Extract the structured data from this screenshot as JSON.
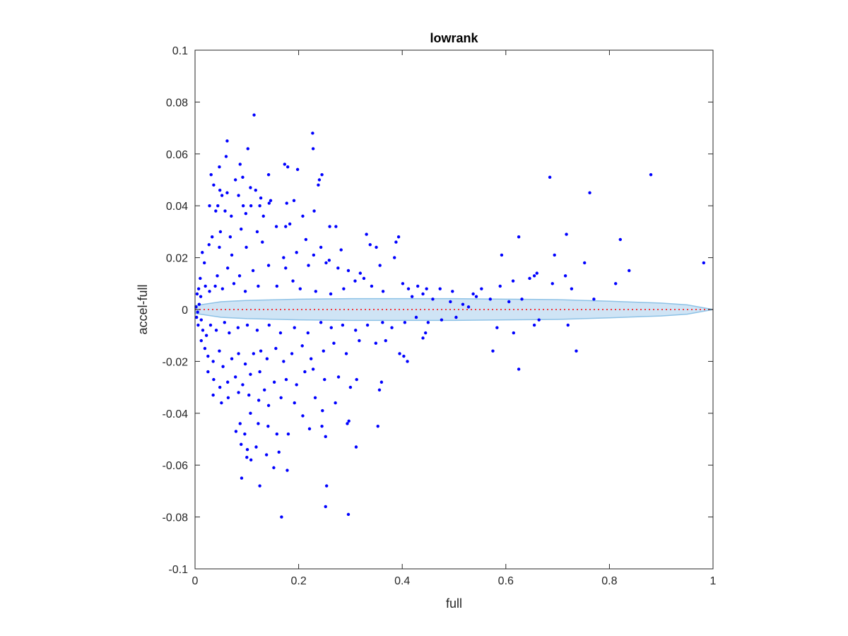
{
  "chart_data": {
    "type": "scatter",
    "title": "lowrank",
    "xlabel": "full",
    "ylabel": "accel-full",
    "xlim": [
      0,
      1
    ],
    "ylim": [
      -0.1,
      0.1
    ],
    "x_ticks": [
      0,
      0.2,
      0.4,
      0.6,
      0.8,
      1
    ],
    "x_tick_labels": [
      "0",
      "0.2",
      "0.4",
      "0.6",
      "0.8",
      "1"
    ],
    "y_ticks": [
      -0.1,
      -0.08,
      -0.06,
      -0.04,
      -0.02,
      0,
      0.02,
      0.04,
      0.06,
      0.08,
      0.1
    ],
    "y_tick_labels": [
      "-0.1",
      "-0.08",
      "-0.06",
      "-0.04",
      "-0.02",
      "0",
      "0.02",
      "0.04",
      "0.06",
      "0.08",
      "0.1"
    ],
    "grid": false,
    "colors": {
      "points": "#0000ff",
      "zero_line": "#ff0000",
      "band_fill": "#cfe4f5",
      "band_edge": "#8ec2e6"
    },
    "zero_line": {
      "y": 0,
      "style": "dotted"
    },
    "band": {
      "x": [
        0,
        0.05,
        0.1,
        0.2,
        0.3,
        0.4,
        0.5,
        0.6,
        0.7,
        0.8,
        0.9,
        0.95,
        1.0
      ],
      "upper": [
        0.0015,
        0.003,
        0.0035,
        0.004,
        0.0042,
        0.0042,
        0.0042,
        0.004,
        0.0038,
        0.0032,
        0.0025,
        0.0018,
        0.0
      ],
      "lower": [
        -0.0015,
        -0.003,
        -0.0035,
        -0.004,
        -0.0042,
        -0.0042,
        -0.0042,
        -0.004,
        -0.0038,
        -0.0032,
        -0.0025,
        -0.0018,
        0.0
      ]
    },
    "series": [
      {
        "points": [
          [
            0.114,
            0.075
          ],
          [
            0.227,
            0.068
          ],
          [
            0.228,
            0.062
          ],
          [
            0.102,
            0.062
          ],
          [
            0.062,
            0.065
          ],
          [
            0.06,
            0.059
          ],
          [
            0.087,
            0.056
          ],
          [
            0.173,
            0.056
          ],
          [
            0.179,
            0.055
          ],
          [
            0.198,
            0.054
          ],
          [
            0.047,
            0.055
          ],
          [
            0.245,
            0.052
          ],
          [
            0.24,
            0.05
          ],
          [
            0.238,
            0.048
          ],
          [
            0.142,
            0.052
          ],
          [
            0.092,
            0.051
          ],
          [
            0.031,
            0.052
          ],
          [
            0.036,
            0.048
          ],
          [
            0.078,
            0.05
          ],
          [
            0.062,
            0.045
          ],
          [
            0.107,
            0.047
          ],
          [
            0.117,
            0.046
          ],
          [
            0.048,
            0.046
          ],
          [
            0.052,
            0.044
          ],
          [
            0.044,
            0.04
          ],
          [
            0.084,
            0.044
          ],
          [
            0.127,
            0.043
          ],
          [
            0.146,
            0.042
          ],
          [
            0.143,
            0.041
          ],
          [
            0.125,
            0.04
          ],
          [
            0.177,
            0.041
          ],
          [
            0.191,
            0.042
          ],
          [
            0.093,
            0.04
          ],
          [
            0.108,
            0.04
          ],
          [
            0.028,
            0.04
          ],
          [
            0.04,
            0.038
          ],
          [
            0.058,
            0.038
          ],
          [
            0.07,
            0.036
          ],
          [
            0.098,
            0.037
          ],
          [
            0.132,
            0.036
          ],
          [
            0.208,
            0.036
          ],
          [
            0.23,
            0.038
          ],
          [
            0.26,
            0.032
          ],
          [
            0.272,
            0.032
          ],
          [
            0.183,
            0.033
          ],
          [
            0.175,
            0.032
          ],
          [
            0.157,
            0.032
          ],
          [
            0.12,
            0.03
          ],
          [
            0.089,
            0.031
          ],
          [
            0.068,
            0.028
          ],
          [
            0.049,
            0.03
          ],
          [
            0.033,
            0.028
          ],
          [
            0.027,
            0.025
          ],
          [
            0.047,
            0.024
          ],
          [
            0.071,
            0.021
          ],
          [
            0.099,
            0.024
          ],
          [
            0.13,
            0.026
          ],
          [
            0.171,
            0.02
          ],
          [
            0.196,
            0.022
          ],
          [
            0.214,
            0.027
          ],
          [
            0.229,
            0.021
          ],
          [
            0.243,
            0.024
          ],
          [
            0.259,
            0.019
          ],
          [
            0.282,
            0.023
          ],
          [
            0.331,
            0.029
          ],
          [
            0.338,
            0.025
          ],
          [
            0.35,
            0.024
          ],
          [
            0.388,
            0.026
          ],
          [
            0.393,
            0.028
          ],
          [
            0.385,
            0.02
          ],
          [
            0.357,
            0.017
          ],
          [
            0.326,
            0.012
          ],
          [
            0.319,
            0.014
          ],
          [
            0.296,
            0.015
          ],
          [
            0.276,
            0.016
          ],
          [
            0.253,
            0.018
          ],
          [
            0.219,
            0.017
          ],
          [
            0.175,
            0.016
          ],
          [
            0.142,
            0.017
          ],
          [
            0.112,
            0.015
          ],
          [
            0.086,
            0.013
          ],
          [
            0.063,
            0.016
          ],
          [
            0.043,
            0.013
          ],
          [
            0.018,
            0.018
          ],
          [
            0.014,
            0.022
          ],
          [
            0.01,
            0.012
          ],
          [
            0.007,
            0.008
          ],
          [
            0.004,
            0.006
          ],
          [
            0.011,
            0.005
          ],
          [
            0.02,
            0.009
          ],
          [
            0.028,
            0.007
          ],
          [
            0.039,
            0.009
          ],
          [
            0.053,
            0.008
          ],
          [
            0.075,
            0.01
          ],
          [
            0.097,
            0.007
          ],
          [
            0.122,
            0.009
          ],
          [
            0.158,
            0.009
          ],
          [
            0.189,
            0.011
          ],
          [
            0.203,
            0.008
          ],
          [
            0.233,
            0.007
          ],
          [
            0.262,
            0.006
          ],
          [
            0.287,
            0.008
          ],
          [
            0.309,
            0.011
          ],
          [
            0.341,
            0.009
          ],
          [
            0.363,
            0.007
          ],
          [
            0.401,
            0.01
          ],
          [
            0.412,
            0.008
          ],
          [
            0.44,
            0.006
          ],
          [
            0.459,
            0.004
          ],
          [
            0.493,
            0.003
          ],
          [
            0.517,
            0.002
          ],
          [
            0.528,
            0.001
          ],
          [
            0.543,
            0.005
          ],
          [
            0.553,
            0.008
          ],
          [
            0.589,
            0.009
          ],
          [
            0.614,
            0.011
          ],
          [
            0.646,
            0.012
          ],
          [
            0.592,
            0.021
          ],
          [
            0.625,
            0.028
          ],
          [
            0.66,
            0.014
          ],
          [
            0.685,
            0.051
          ],
          [
            0.717,
            0.029
          ],
          [
            0.762,
            0.045
          ],
          [
            0.752,
            0.018
          ],
          [
            0.821,
            0.027
          ],
          [
            0.838,
            0.015
          ],
          [
            0.812,
            0.01
          ],
          [
            0.88,
            0.052
          ],
          [
            0.982,
            0.018
          ],
          [
            0.694,
            0.021
          ],
          [
            0.715,
            0.013
          ],
          [
            0.727,
            0.008
          ],
          [
            0.77,
            0.004
          ],
          [
            0.69,
            0.01
          ],
          [
            0.655,
            0.013
          ],
          [
            0.631,
            0.004
          ],
          [
            0.606,
            0.003
          ],
          [
            0.57,
            0.004
          ],
          [
            0.537,
            0.006
          ],
          [
            0.497,
            0.007
          ],
          [
            0.473,
            0.008
          ],
          [
            0.447,
            0.008
          ],
          [
            0.43,
            0.009
          ],
          [
            0.419,
            0.005
          ],
          [
            0.002,
            0.001
          ],
          [
            0.005,
            -0.001
          ],
          [
            0.008,
            0.002
          ],
          [
            0.003,
            -0.003
          ],
          [
            0.006,
            -0.006
          ],
          [
            0.012,
            -0.004
          ],
          [
            0.015,
            -0.008
          ],
          [
            0.022,
            -0.01
          ],
          [
            0.03,
            -0.006
          ],
          [
            0.041,
            -0.008
          ],
          [
            0.057,
            -0.005
          ],
          [
            0.066,
            -0.009
          ],
          [
            0.083,
            -0.007
          ],
          [
            0.101,
            -0.006
          ],
          [
            0.12,
            -0.008
          ],
          [
            0.143,
            -0.006
          ],
          [
            0.165,
            -0.009
          ],
          [
            0.192,
            -0.007
          ],
          [
            0.218,
            -0.009
          ],
          [
            0.243,
            -0.005
          ],
          [
            0.263,
            -0.007
          ],
          [
            0.285,
            -0.006
          ],
          [
            0.31,
            -0.008
          ],
          [
            0.333,
            -0.006
          ],
          [
            0.362,
            -0.005
          ],
          [
            0.38,
            -0.007
          ],
          [
            0.405,
            -0.005
          ],
          [
            0.427,
            -0.003
          ],
          [
            0.45,
            -0.005
          ],
          [
            0.476,
            -0.004
          ],
          [
            0.504,
            -0.003
          ],
          [
            0.012,
            -0.012
          ],
          [
            0.019,
            -0.015
          ],
          [
            0.025,
            -0.018
          ],
          [
            0.035,
            -0.02
          ],
          [
            0.047,
            -0.016
          ],
          [
            0.054,
            -0.022
          ],
          [
            0.071,
            -0.019
          ],
          [
            0.084,
            -0.017
          ],
          [
            0.097,
            -0.021
          ],
          [
            0.113,
            -0.017
          ],
          [
            0.127,
            -0.016
          ],
          [
            0.139,
            -0.019
          ],
          [
            0.156,
            -0.015
          ],
          [
            0.171,
            -0.02
          ],
          [
            0.187,
            -0.017
          ],
          [
            0.207,
            -0.014
          ],
          [
            0.224,
            -0.019
          ],
          [
            0.248,
            -0.016
          ],
          [
            0.268,
            -0.013
          ],
          [
            0.292,
            -0.017
          ],
          [
            0.317,
            -0.012
          ],
          [
            0.349,
            -0.013
          ],
          [
            0.368,
            -0.012
          ],
          [
            0.395,
            -0.017
          ],
          [
            0.403,
            -0.018
          ],
          [
            0.41,
            -0.02
          ],
          [
            0.44,
            -0.011
          ],
          [
            0.445,
            -0.009
          ],
          [
            0.575,
            -0.016
          ],
          [
            0.615,
            -0.009
          ],
          [
            0.583,
            -0.007
          ],
          [
            0.625,
            -0.023
          ],
          [
            0.655,
            -0.006
          ],
          [
            0.664,
            -0.004
          ],
          [
            0.736,
            -0.016
          ],
          [
            0.72,
            -0.006
          ],
          [
            0.025,
            -0.024
          ],
          [
            0.036,
            -0.027
          ],
          [
            0.048,
            -0.03
          ],
          [
            0.063,
            -0.028
          ],
          [
            0.078,
            -0.026
          ],
          [
            0.092,
            -0.029
          ],
          [
            0.107,
            -0.025
          ],
          [
            0.125,
            -0.024
          ],
          [
            0.134,
            -0.031
          ],
          [
            0.153,
            -0.028
          ],
          [
            0.176,
            -0.027
          ],
          [
            0.196,
            -0.029
          ],
          [
            0.212,
            -0.024
          ],
          [
            0.228,
            -0.023
          ],
          [
            0.25,
            -0.027
          ],
          [
            0.277,
            -0.026
          ],
          [
            0.3,
            -0.03
          ],
          [
            0.312,
            -0.027
          ],
          [
            0.36,
            -0.028
          ],
          [
            0.356,
            -0.031
          ],
          [
            0.035,
            -0.033
          ],
          [
            0.051,
            -0.036
          ],
          [
            0.064,
            -0.034
          ],
          [
            0.084,
            -0.032
          ],
          [
            0.104,
            -0.033
          ],
          [
            0.123,
            -0.035
          ],
          [
            0.142,
            -0.037
          ],
          [
            0.166,
            -0.034
          ],
          [
            0.192,
            -0.036
          ],
          [
            0.208,
            -0.041
          ],
          [
            0.232,
            -0.034
          ],
          [
            0.246,
            -0.039
          ],
          [
            0.271,
            -0.036
          ],
          [
            0.087,
            -0.044
          ],
          [
            0.079,
            -0.047
          ],
          [
            0.096,
            -0.048
          ],
          [
            0.107,
            -0.04
          ],
          [
            0.122,
            -0.044
          ],
          [
            0.141,
            -0.045
          ],
          [
            0.158,
            -0.048
          ],
          [
            0.18,
            -0.048
          ],
          [
            0.221,
            -0.046
          ],
          [
            0.245,
            -0.045
          ],
          [
            0.252,
            -0.049
          ],
          [
            0.294,
            -0.044
          ],
          [
            0.297,
            -0.043
          ],
          [
            0.353,
            -0.045
          ],
          [
            0.089,
            -0.052
          ],
          [
            0.101,
            -0.054
          ],
          [
            0.118,
            -0.053
          ],
          [
            0.138,
            -0.056
          ],
          [
            0.162,
            -0.055
          ],
          [
            0.311,
            -0.053
          ],
          [
            0.1,
            -0.057
          ],
          [
            0.108,
            -0.058
          ],
          [
            0.152,
            -0.061
          ],
          [
            0.178,
            -0.062
          ],
          [
            0.09,
            -0.065
          ],
          [
            0.125,
            -0.068
          ],
          [
            0.254,
            -0.068
          ],
          [
            0.252,
            -0.076
          ],
          [
            0.296,
            -0.079
          ],
          [
            0.167,
            -0.08
          ]
        ]
      }
    ]
  }
}
